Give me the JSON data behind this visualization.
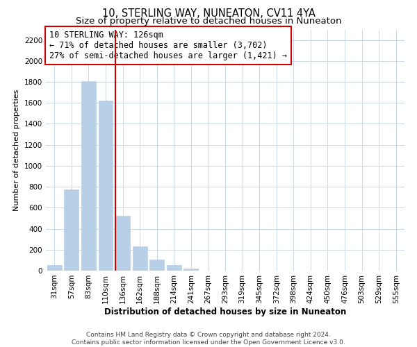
{
  "title": "10, STERLING WAY, NUNEATON, CV11 4YA",
  "subtitle": "Size of property relative to detached houses in Nuneaton",
  "xlabel": "Distribution of detached houses by size in Nuneaton",
  "ylabel": "Number of detached properties",
  "bar_labels": [
    "31sqm",
    "57sqm",
    "83sqm",
    "110sqm",
    "136sqm",
    "162sqm",
    "188sqm",
    "214sqm",
    "241sqm",
    "267sqm",
    "293sqm",
    "319sqm",
    "345sqm",
    "372sqm",
    "398sqm",
    "424sqm",
    "450sqm",
    "476sqm",
    "503sqm",
    "529sqm",
    "555sqm"
  ],
  "bar_values": [
    50,
    775,
    1810,
    1620,
    520,
    230,
    105,
    55,
    20,
    0,
    0,
    0,
    0,
    0,
    0,
    0,
    0,
    0,
    0,
    0,
    0
  ],
  "bar_color": "#b8cfe8",
  "bar_edge_color": "#b8cfe8",
  "vline_color": "#cc0000",
  "box_edge_color": "#cc0000",
  "annotation_line1": "10 STERLING WAY: 126sqm",
  "annotation_line2": "← 71% of detached houses are smaller (3,702)",
  "annotation_line3": "27% of semi-detached houses are larger (1,421) →",
  "ylim": [
    0,
    2300
  ],
  "yticks": [
    0,
    200,
    400,
    600,
    800,
    1000,
    1200,
    1400,
    1600,
    1800,
    2000,
    2200
  ],
  "footer_text": "Contains HM Land Registry data © Crown copyright and database right 2024.\nContains public sector information licensed under the Open Government Licence v3.0.",
  "background_color": "#ffffff",
  "grid_color": "#c8d8e8",
  "title_fontsize": 10.5,
  "subtitle_fontsize": 9.5,
  "xlabel_fontsize": 8.5,
  "ylabel_fontsize": 8,
  "tick_fontsize": 7.5,
  "annotation_fontsize": 8.5,
  "footer_fontsize": 6.5
}
